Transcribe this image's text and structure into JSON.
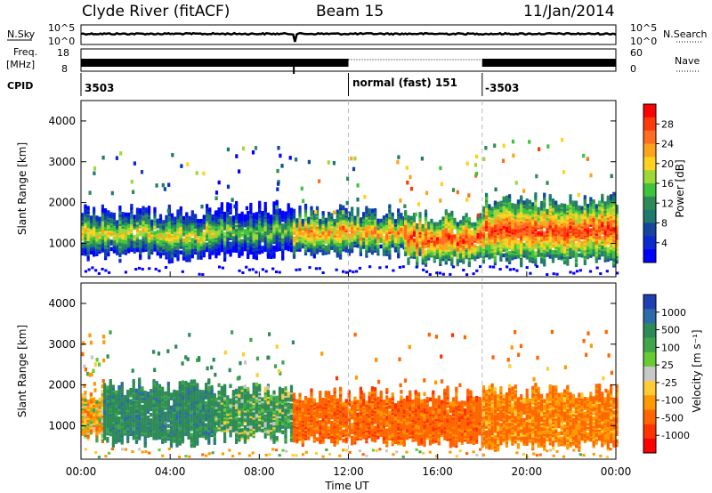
{
  "header": {
    "station": "Clyde River (fitACF)",
    "beam": "Beam 15",
    "date": "11/Jan/2014"
  },
  "noise_panel": {
    "left_label": "N.Sky",
    "left_ticks": [
      "10^5",
      "10^0"
    ],
    "right_label": "N.Search",
    "right_ticks": [
      "10^5",
      "10^0"
    ]
  },
  "freq_panel": {
    "left_label_1": "Freq.",
    "left_label_2": "[MHz]",
    "left_ticks": [
      "18",
      "8"
    ],
    "right_label": "Nave",
    "right_ticks": [
      "60",
      "0"
    ]
  },
  "cpid": {
    "label": "CPID",
    "segments": [
      {
        "start_hour": 0,
        "label": "3503"
      },
      {
        "start_hour": 12,
        "label": "normal (fast) 151"
      },
      {
        "start_hour": 18,
        "label": "-3503"
      }
    ]
  },
  "x_axis": {
    "title": "Time UT",
    "ticks": [
      "00:00",
      "04:00",
      "08:00",
      "12:00",
      "16:00",
      "20:00",
      "00:00"
    ]
  },
  "power_colorbar": {
    "label": "Power [dB]",
    "ticks": [
      "28",
      "24",
      "20",
      "16",
      "12",
      "8",
      "4"
    ],
    "colors": [
      "#ff0000",
      "#ff3a0a",
      "#ff6e1e",
      "#ffa31c",
      "#ffd21f",
      "#9fd836",
      "#3fc43c",
      "#2e8b57",
      "#1e7a6e",
      "#1446a0",
      "#0a2ad0",
      "#0000ff"
    ]
  },
  "velocity_colorbar": {
    "label": "Velocity [m s⁻¹]",
    "ticks": [
      "1000",
      "500",
      "100",
      "25",
      "-25",
      "-100",
      "-500",
      "-1000"
    ],
    "colors": [
      "#1f3fb2",
      "#2d6aa8",
      "#2e8b57",
      "#3fa64a",
      "#66cc33",
      "#c8c8c8",
      "#ffcc33",
      "#ff9900",
      "#ff6600",
      "#ff3300",
      "#ff0000"
    ]
  },
  "chart_data": [
    {
      "type": "heatmap",
      "title": "Power",
      "ylabel": "Slant Range [km]",
      "xlabel": "",
      "xlim": [
        0,
        24
      ],
      "ylim": [
        180,
        4500
      ],
      "yticks": [
        "1000",
        "2000",
        "3000",
        "4000"
      ],
      "grid": false,
      "band_segments": [
        {
          "start_hour": 0.0,
          "end_hour": 6.0,
          "range_low_km": 650,
          "range_high_km": 1700,
          "core_power_db": 20
        },
        {
          "start_hour": 6.0,
          "end_hour": 9.5,
          "range_low_km": 700,
          "range_high_km": 1800,
          "core_power_db": 16
        },
        {
          "start_hour": 9.5,
          "end_hour": 14.5,
          "range_low_km": 750,
          "range_high_km": 1700,
          "core_power_db": 24
        },
        {
          "start_hour": 14.5,
          "end_hour": 18.0,
          "range_low_km": 550,
          "range_high_km": 1600,
          "core_power_db": 28
        },
        {
          "start_hour": 18.0,
          "end_hour": 24.0,
          "range_low_km": 550,
          "range_high_km": 2000,
          "core_power_db": 28
        }
      ]
    },
    {
      "type": "heatmap",
      "title": "Velocity",
      "ylabel": "Slant Range [km]",
      "xlabel": "Time UT",
      "xlim": [
        0,
        24
      ],
      "ylim": [
        180,
        4500
      ],
      "yticks": [
        "1000",
        "2000",
        "3000",
        "4000"
      ],
      "grid": false,
      "band_segments": [
        {
          "start_hour": 0.0,
          "end_hour": 1.0,
          "range_low_km": 700,
          "range_high_km": 1700,
          "velocity_ms": -100
        },
        {
          "start_hour": 1.0,
          "end_hour": 6.0,
          "range_low_km": 600,
          "range_high_km": 1900,
          "velocity_ms": 200
        },
        {
          "start_hour": 6.0,
          "end_hour": 9.5,
          "range_low_km": 700,
          "range_high_km": 1800,
          "velocity_ms": 100
        },
        {
          "start_hour": 9.5,
          "end_hour": 18.0,
          "range_low_km": 600,
          "range_high_km": 1700,
          "velocity_ms": -300
        },
        {
          "start_hour": 18.0,
          "end_hour": 24.0,
          "range_low_km": 500,
          "range_high_km": 1800,
          "velocity_ms": -200
        }
      ]
    }
  ]
}
